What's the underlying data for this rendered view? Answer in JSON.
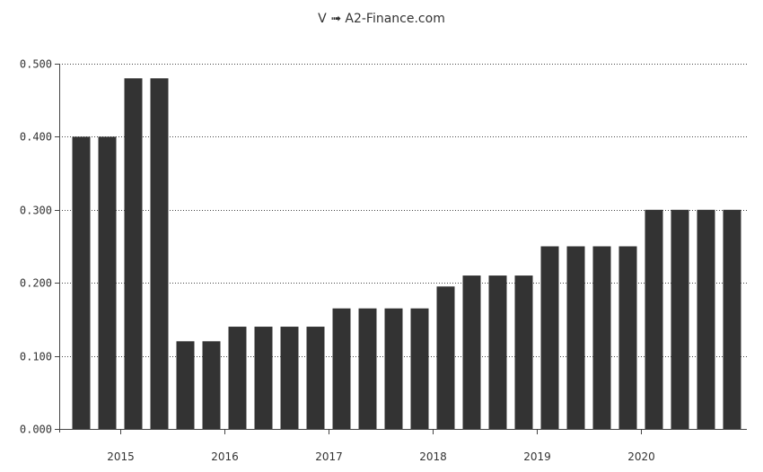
{
  "chart_data": {
    "type": "bar",
    "title": "V ➟ A2-Finance.com",
    "xlabel": "",
    "ylabel": "",
    "ylim": [
      0,
      0.5
    ],
    "yticks": [
      "0.000",
      "0.100",
      "0.200",
      "0.300",
      "0.400",
      "0.500"
    ],
    "ytick_values": [
      0,
      0.1,
      0.2,
      0.3,
      0.4,
      0.5
    ],
    "xtick_labels": [
      "2015",
      "2016",
      "2017",
      "2018",
      "2019",
      "2020"
    ],
    "xtick_after_bar": [
      2,
      6,
      10,
      14,
      18,
      22
    ],
    "grid": true,
    "bar_color": "#333333",
    "values": [
      0.4,
      0.4,
      0.48,
      0.48,
      0.12,
      0.12,
      0.14,
      0.14,
      0.14,
      0.14,
      0.165,
      0.165,
      0.165,
      0.165,
      0.195,
      0.21,
      0.21,
      0.21,
      0.25,
      0.25,
      0.25,
      0.25,
      0.3,
      0.3,
      0.3,
      0.3
    ]
  }
}
